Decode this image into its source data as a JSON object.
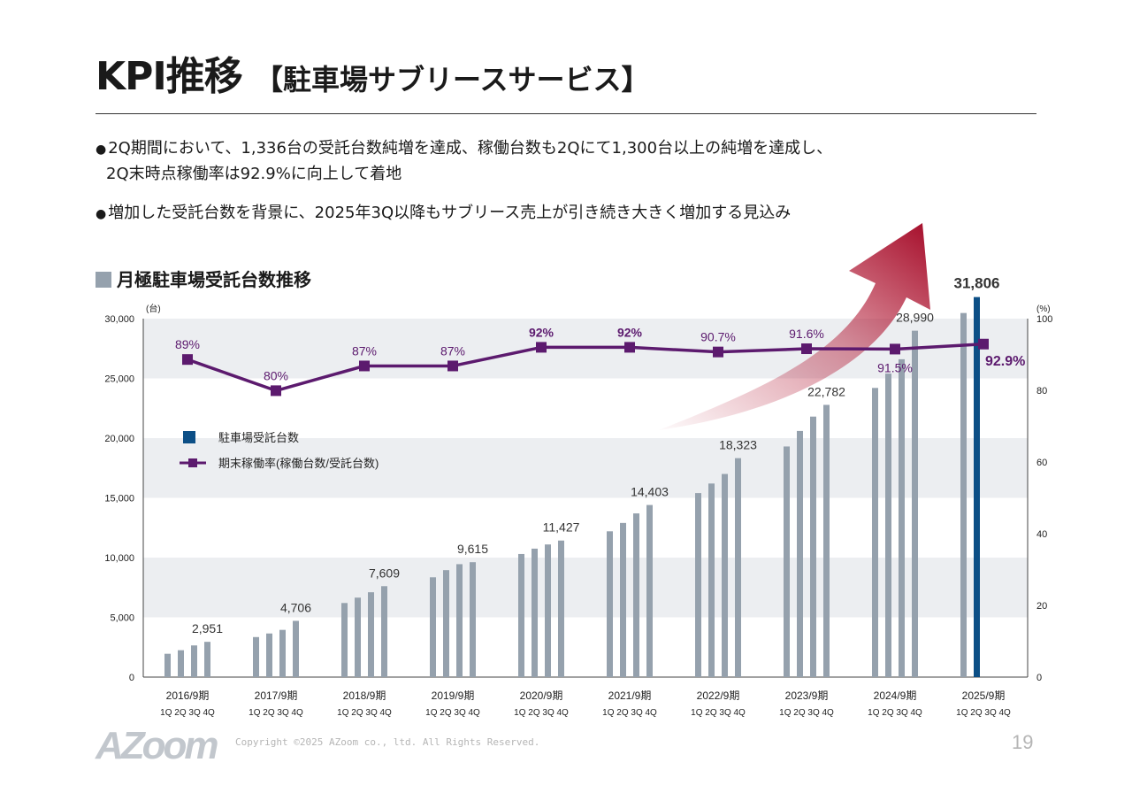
{
  "header": {
    "title": "KPI推移",
    "subtitle": "【駐車場サブリースサービス】"
  },
  "bullets": [
    {
      "lines": [
        "2Q期間において、1,336台の受託台数純増を達成、稼働台数も2Qにて1,300台以上の純増を達成し、",
        "2Q末時点稼働率は92.9%に向上して着地"
      ]
    },
    {
      "lines": [
        "増加した受託台数を背景に、2025年3Q以降もサブリース売上が引き続き大きく増加する見込み"
      ]
    }
  ],
  "section_title": "月極駐車場受託台数推移",
  "footer": {
    "logo": "AZoom",
    "copyright": "Copyright ©2025 AZoom co., ltd. All Rights Reserved.",
    "page_number": "19"
  },
  "colors": {
    "bar": "#95a1ad",
    "bar_highlight": "#0c4f86",
    "line": "#5c1a6e",
    "band": "#eceef1",
    "arrow": "#b0102c"
  },
  "chart_data": {
    "type": "bar+line",
    "left_axis": {
      "unit": "(台)",
      "min": 0,
      "max": 30000,
      "ticks": [
        "0",
        "5,000",
        "10,000",
        "15,000",
        "20,000",
        "25,000",
        "30,000"
      ]
    },
    "right_axis": {
      "unit": "(%)",
      "min": 0,
      "max": 100,
      "ticks": [
        "0",
        "20",
        "40",
        "60",
        "80",
        "100"
      ]
    },
    "legend": [
      {
        "label": "駐車場受託台数",
        "type": "bar"
      },
      {
        "label": "期末稼働率(稼働台数/受託台数)",
        "type": "line"
      }
    ],
    "quarter_label": "1Q 2Q 3Q 4Q",
    "years": [
      {
        "label": "2016/9期",
        "values": [
          1950,
          2250,
          2650,
          2951
        ],
        "bar_label": "2,951"
      },
      {
        "label": "2017/9期",
        "values": [
          3350,
          3650,
          3950,
          4706
        ],
        "bar_label": "4,706"
      },
      {
        "label": "2018/9期",
        "values": [
          6200,
          6650,
          7100,
          7609
        ],
        "bar_label": "7,609"
      },
      {
        "label": "2019/9期",
        "values": [
          8350,
          8950,
          9450,
          9615
        ],
        "bar_label": "9,615"
      },
      {
        "label": "2020/9期",
        "values": [
          10300,
          10750,
          11100,
          11427
        ],
        "bar_label": "11,427"
      },
      {
        "label": "2021/9期",
        "values": [
          12200,
          12900,
          13700,
          14403
        ],
        "bar_label": "14,403"
      },
      {
        "label": "2022/9期",
        "values": [
          15400,
          16200,
          17000,
          18323
        ],
        "bar_label": "18,323"
      },
      {
        "label": "2023/9期",
        "values": [
          19300,
          20600,
          21800,
          22782
        ],
        "bar_label": "22,782"
      },
      {
        "label": "2024/9期",
        "values": [
          24200,
          25400,
          26600,
          28990
        ],
        "bar_label": "28,990"
      },
      {
        "label": "2025/9期",
        "values": [
          30470,
          31806
        ],
        "bar_label": "31,806"
      }
    ],
    "occupancy_rate": {
      "values": [
        88.6,
        79.9,
        86.8,
        86.8,
        92.0,
        92.0,
        90.7,
        91.6,
        91.5,
        92.9
      ],
      "labels": [
        "89%",
        "80%",
        "87%",
        "87%",
        "92%",
        "92%",
        "90.7%",
        "91.6%",
        "91.5%",
        "92.9%"
      ]
    }
  }
}
